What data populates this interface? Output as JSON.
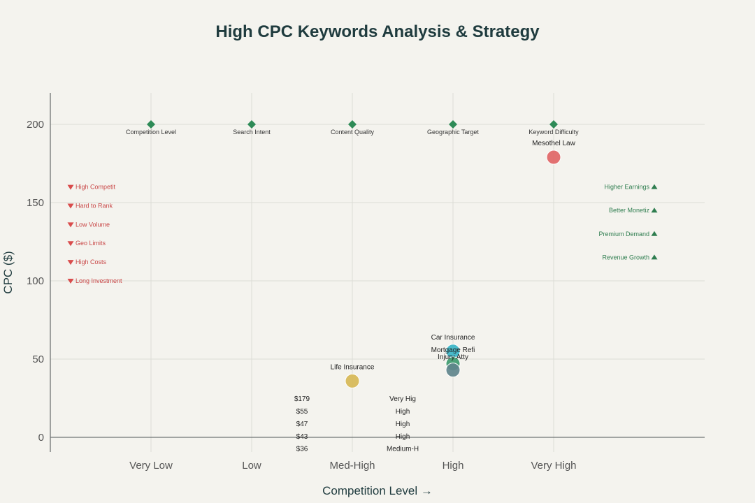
{
  "chart_data": {
    "type": "scatter",
    "title": "High CPC Keywords Analysis & Strategy",
    "xlabel": "Competition Level →",
    "ylabel": "CPC ($)",
    "categories": [
      "Very Low",
      "Low",
      "Med-High",
      "High",
      "Very High"
    ],
    "ylim": [
      -10,
      220
    ],
    "yticks": [
      0,
      50,
      100,
      150,
      200
    ],
    "grid": true,
    "series": [
      {
        "points": [
          {
            "category": "Very High",
            "y": 179,
            "label": "Mesothel Law",
            "color": "#e06666"
          },
          {
            "category": "High",
            "y": 55,
            "label": "Car Insurance",
            "color": "#3ab5c7"
          },
          {
            "category": "High",
            "y": 47,
            "label": "Mortgage Refi",
            "color": "#3e9b6f"
          },
          {
            "category": "High",
            "y": 43,
            "label": "Injury Atty",
            "color": "#5f858c"
          },
          {
            "category": "Med-High",
            "y": 36,
            "label": "Life Insurance",
            "color": "#d6b956"
          }
        ]
      }
    ],
    "factors": [
      {
        "category": "Very Low",
        "label": "Competition Level"
      },
      {
        "category": "Low",
        "label": "Search Intent"
      },
      {
        "category": "Med-High",
        "label": "Content Quality"
      },
      {
        "category": "High",
        "label": "Geographic Target"
      },
      {
        "category": "Very High",
        "label": "Keyword Difficulty"
      }
    ],
    "factor_y": 200,
    "challenges": [
      {
        "label": "High Competit",
        "y": 160
      },
      {
        "label": "Hard to Rank",
        "y": 148
      },
      {
        "label": "Low Volume",
        "y": 136
      },
      {
        "label": "Geo Limits",
        "y": 124
      },
      {
        "label": "High Costs",
        "y": 112
      },
      {
        "label": "Long Investment",
        "y": 100
      }
    ],
    "benefits": [
      {
        "label": "Higher Earnings",
        "y": 160
      },
      {
        "label": "Better Monetiz",
        "y": 145
      },
      {
        "label": "Premium Demand",
        "y": 130
      },
      {
        "label": "Revenue Growth",
        "y": 115
      }
    ],
    "table": [
      {
        "cpc": "$179",
        "competition": "Very Hig",
        "y": 25
      },
      {
        "cpc": "$55",
        "competition": "High",
        "y": 17
      },
      {
        "cpc": "$47",
        "competition": "High",
        "y": 9
      },
      {
        "cpc": "$43",
        "competition": "High",
        "y": 1
      },
      {
        "cpc": "$36",
        "competition": "Medium-H",
        "y": -7
      }
    ],
    "colors": {
      "factor": "#2e8b57",
      "challenge": "#d94c4c",
      "benefit": "#2e7d4f",
      "text": "#1f3b3e"
    }
  }
}
